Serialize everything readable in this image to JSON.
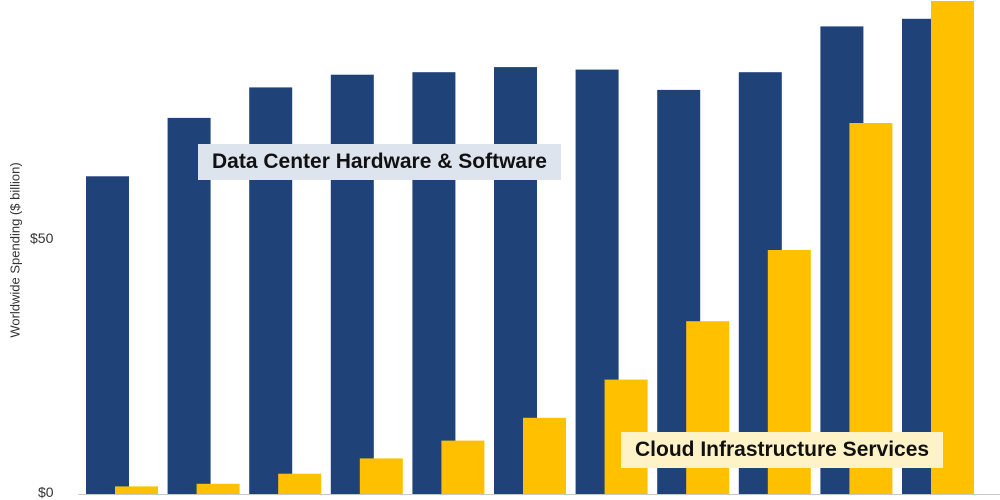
{
  "chart_data": {
    "type": "bar",
    "ylabel": "Worldwide Spending ($ billion)",
    "ylim": [
      0,
      97
    ],
    "yticks": [
      {
        "value": 0,
        "label": "$0"
      },
      {
        "value": 50,
        "label": "$50"
      }
    ],
    "grid": false,
    "categories": [
      "",
      "",
      "",
      "",
      "",
      "",
      "",
      "",
      "",
      "",
      ""
    ],
    "series": [
      {
        "name": "Data Center Hardware & Software",
        "color": "#1f4279",
        "values": [
          62.5,
          74.0,
          80.0,
          82.5,
          83.0,
          84.0,
          83.5,
          79.5,
          83.0,
          92.0,
          93.5
        ]
      },
      {
        "name": "Cloud Infrastructure Services",
        "color": "#ffc000",
        "values": [
          1.5,
          2.0,
          4.0,
          7.0,
          10.5,
          15.0,
          22.5,
          34.0,
          48.0,
          73.0,
          97.0
        ]
      }
    ]
  }
}
